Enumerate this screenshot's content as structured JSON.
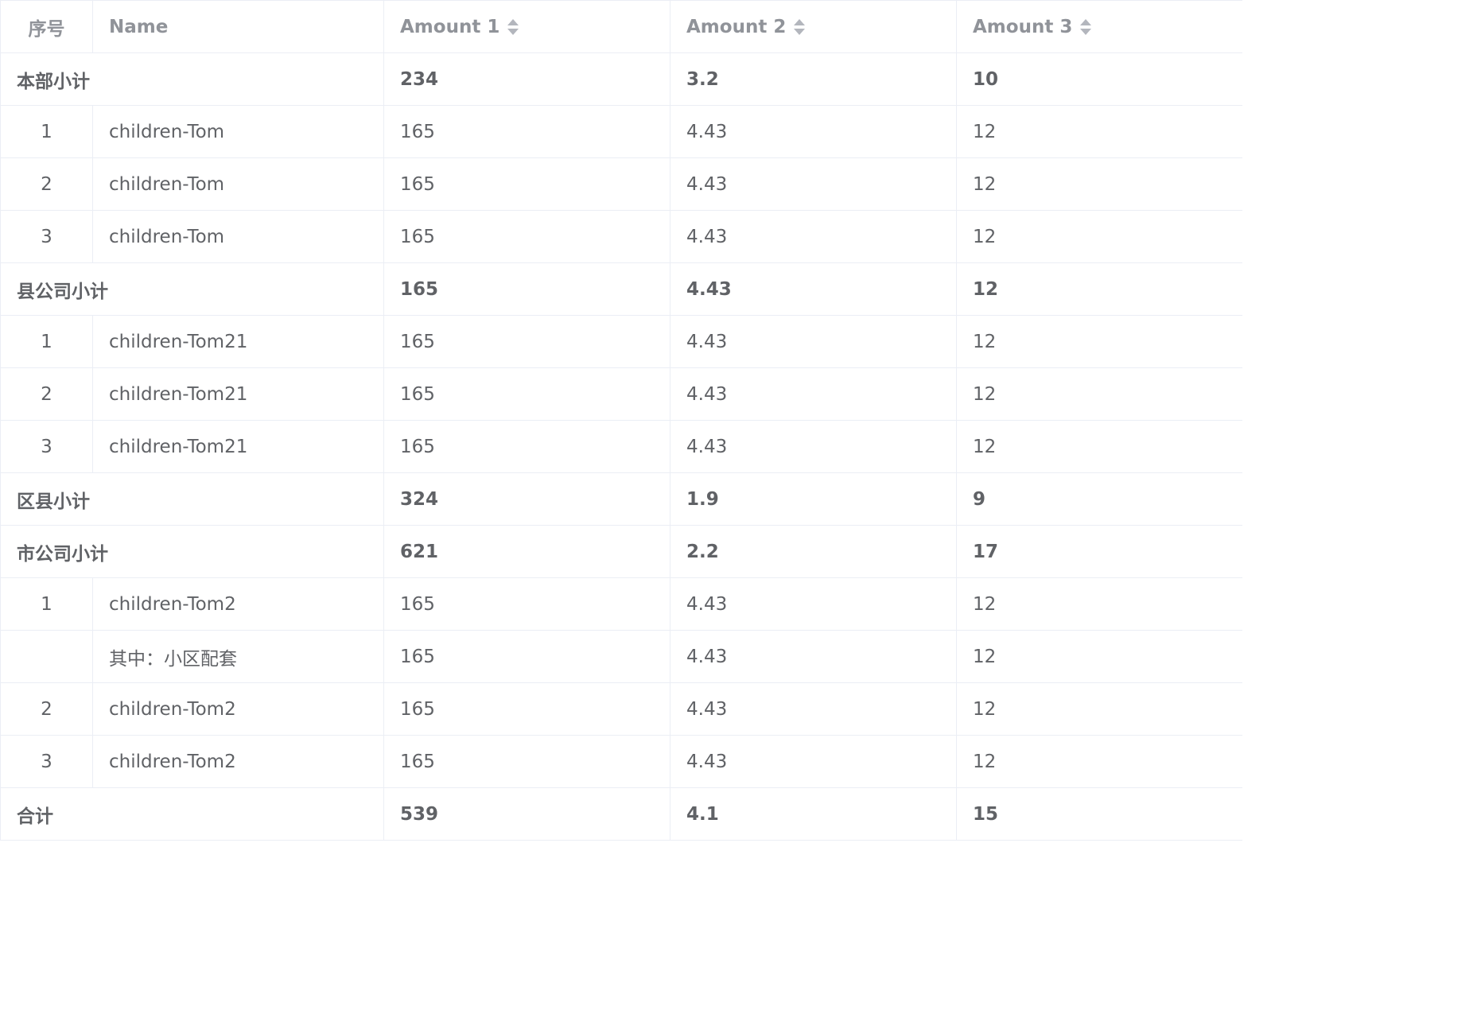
{
  "columns": {
    "index": "序号",
    "name": "Name",
    "amount1": "Amount 1",
    "amount2": "Amount 2",
    "amount3": "Amount 3"
  },
  "rows": [
    {
      "type": "subtotal",
      "label": "本部小计",
      "amount1": "234",
      "amount2": "3.2",
      "amount3": "10"
    },
    {
      "type": "detail",
      "index": "1",
      "name": "children-Tom",
      "amount1": "165",
      "amount2": "4.43",
      "amount3": "12"
    },
    {
      "type": "detail",
      "index": "2",
      "name": "children-Tom",
      "amount1": "165",
      "amount2": "4.43",
      "amount3": "12"
    },
    {
      "type": "detail",
      "index": "3",
      "name": "children-Tom",
      "amount1": "165",
      "amount2": "4.43",
      "amount3": "12"
    },
    {
      "type": "subtotal",
      "label": "县公司小计",
      "amount1": "165",
      "amount2": "4.43",
      "amount3": "12"
    },
    {
      "type": "detail",
      "index": "1",
      "name": "children-Tom21",
      "amount1": "165",
      "amount2": "4.43",
      "amount3": "12"
    },
    {
      "type": "detail",
      "index": "2",
      "name": "children-Tom21",
      "amount1": "165",
      "amount2": "4.43",
      "amount3": "12"
    },
    {
      "type": "detail",
      "index": "3",
      "name": "children-Tom21",
      "amount1": "165",
      "amount2": "4.43",
      "amount3": "12"
    },
    {
      "type": "subtotal",
      "label": "区县小计",
      "amount1": "324",
      "amount2": "1.9",
      "amount3": "9"
    },
    {
      "type": "subtotal",
      "label": "市公司小计",
      "amount1": "621",
      "amount2": "2.2",
      "amount3": "17"
    },
    {
      "type": "detail",
      "index": "1",
      "name": "children-Tom2",
      "amount1": "165",
      "amount2": "4.43",
      "amount3": "12"
    },
    {
      "type": "detail",
      "index": "",
      "name": "其中：小区配套",
      "amount1": "165",
      "amount2": "4.43",
      "amount3": "12"
    },
    {
      "type": "detail",
      "index": "2",
      "name": "children-Tom2",
      "amount1": "165",
      "amount2": "4.43",
      "amount3": "12"
    },
    {
      "type": "detail",
      "index": "3",
      "name": "children-Tom2",
      "amount1": "165",
      "amount2": "4.43",
      "amount3": "12"
    },
    {
      "type": "subtotal",
      "label": "合计",
      "amount1": "539",
      "amount2": "4.1",
      "amount3": "15"
    }
  ],
  "colors": {
    "border": "#ebeef5",
    "header_text": "#909399",
    "body_text": "#606266",
    "sort_icon": "#b3b6bd"
  }
}
